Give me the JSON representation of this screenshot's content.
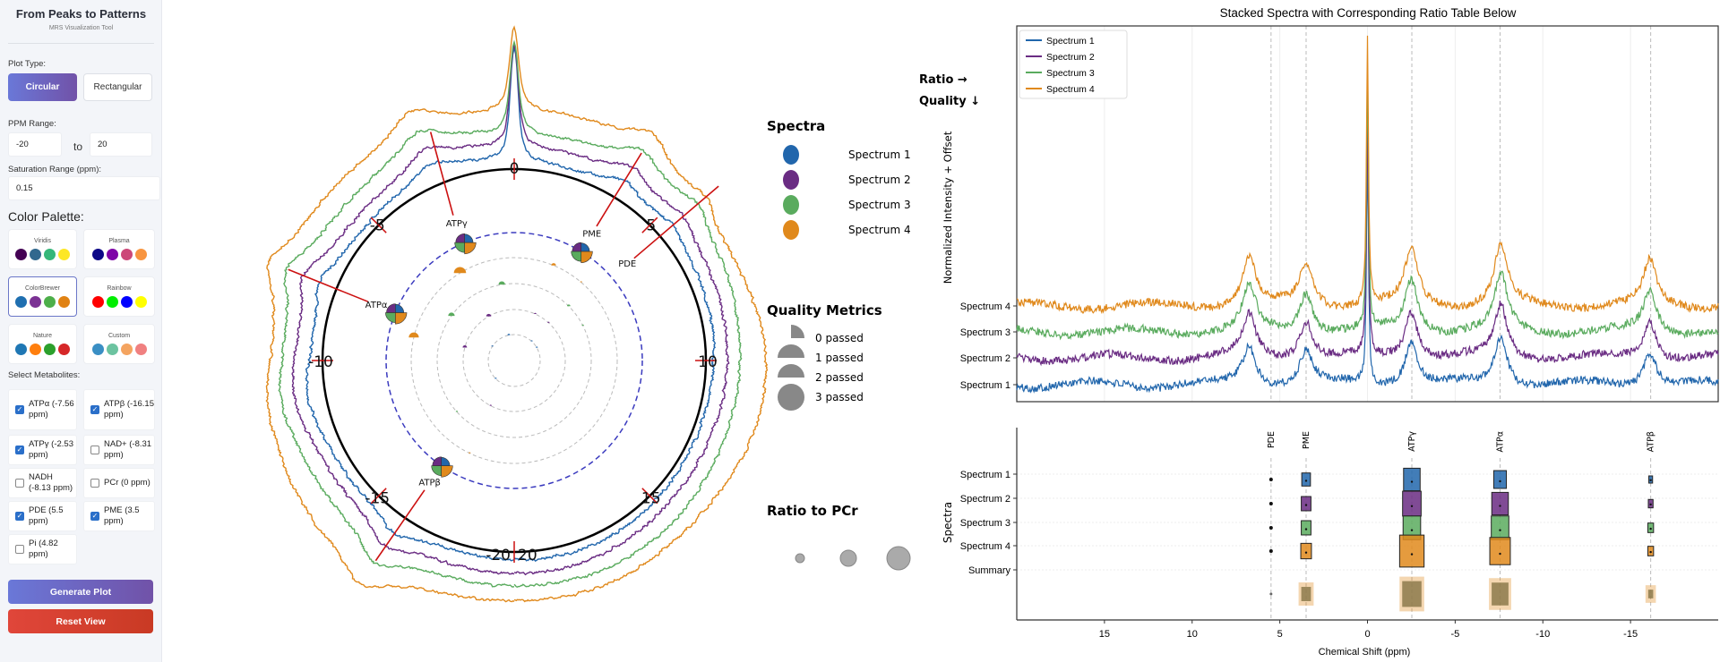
{
  "sidebar": {
    "title": "From Peaks to Patterns",
    "subtitle": "MRS Visualization Tool",
    "plot_type_label": "Plot Type:",
    "plot_types": [
      "Circular",
      "Rectangular"
    ],
    "plot_type_selected": "Circular",
    "ppm_label": "PPM Range:",
    "ppm_min": "-20",
    "ppm_to": "to",
    "ppm_max": "20",
    "saturation_label": "Saturation Range (ppm):",
    "saturation_value": "0.15",
    "palette_label": "Color Palette:",
    "palettes": [
      {
        "name": "Viridis",
        "colors": [
          "#440154",
          "#31688e",
          "#35b779",
          "#fde725"
        ]
      },
      {
        "name": "Plasma",
        "colors": [
          "#0d0887",
          "#7e03a8",
          "#cc4778",
          "#f89540"
        ]
      },
      {
        "name": "ColorBrewer",
        "colors": [
          "#1f6fb0",
          "#7b3294",
          "#4daf4a",
          "#e08214"
        ]
      },
      {
        "name": "Rainbow",
        "colors": [
          "#ff0000",
          "#00ee00",
          "#0000ff",
          "#ffff00"
        ]
      },
      {
        "name": "Nature",
        "colors": [
          "#1f77b4",
          "#ff7f0e",
          "#2ca02c",
          "#d62728"
        ]
      },
      {
        "name": "Custom",
        "colors": [
          "#3a8fc4",
          "#6cc3a0",
          "#f4a460",
          "#f08080"
        ]
      }
    ],
    "palette_selected": "ColorBrewer",
    "metabolites_label": "Select Metabolites:",
    "metabolites": [
      {
        "label": "ATPα (-7.56 ppm)",
        "checked": true
      },
      {
        "label": "ATPβ (-16.15 ppm)",
        "checked": true
      },
      {
        "label": "ATPγ (-2.53 ppm)",
        "checked": true
      },
      {
        "label": "NAD+ (-8.31 ppm)",
        "checked": false
      },
      {
        "label": "NADH (-8.13 ppm)",
        "checked": false
      },
      {
        "label": "PCr (0 ppm)",
        "checked": false
      },
      {
        "label": "PDE (5.5 ppm)",
        "checked": true
      },
      {
        "label": "PME (3.5 ppm)",
        "checked": true
      },
      {
        "label": "Pi (4.82 ppm)",
        "checked": false
      }
    ],
    "generate_label": "Generate Plot",
    "reset_label": "Reset View"
  },
  "colors": {
    "spectra": [
      "#2166ac",
      "#6a2c83",
      "#5aab5e",
      "#e0891c"
    ],
    "summary": "#8c7a4c",
    "marker_line": "#cc1111",
    "ring": "#3b3bbf"
  },
  "polar": {
    "tick_labels": [
      "0",
      "5",
      "10",
      "15",
      "20",
      "-20",
      "-15",
      "-10",
      "-5"
    ],
    "metabolites": [
      {
        "name": "ATPγ",
        "ppm": -2.53
      },
      {
        "name": "PME",
        "ppm": 3.5
      },
      {
        "name": "PDE",
        "ppm": 5.5
      },
      {
        "name": "ATPα",
        "ppm": -7.56
      },
      {
        "name": "ATPβ",
        "ppm": -16.15
      }
    ],
    "legend": {
      "spectra_title": "Spectra",
      "spectra": [
        "Spectrum 1",
        "Spectrum 2",
        "Spectrum 3",
        "Spectrum 4"
      ],
      "quality_title": "Quality Metrics",
      "quality": [
        "0 passed",
        "1 passed",
        "2 passed",
        "3 passed"
      ],
      "ratio_title": "Ratio to PCr"
    }
  },
  "chart_data": [
    {
      "type": "line",
      "title": "Stacked Spectra with Corresponding Ratio Table Below",
      "ylabel": "Normalized Intensity + Offset",
      "xlim": [
        20,
        -20
      ],
      "series": [
        {
          "name": "Spectrum 1"
        },
        {
          "name": "Spectrum 2"
        },
        {
          "name": "Spectrum 3"
        },
        {
          "name": "Spectrum 4"
        }
      ],
      "yticklabels": [
        "Spectrum 1",
        "Spectrum 2",
        "Spectrum 3",
        "Spectrum 4"
      ],
      "peaks_ppm": [
        6.75,
        3.5,
        0,
        -2.5,
        -7.6,
        -16.1
      ],
      "legend": "top-left",
      "annotation": [
        "Ratio →",
        "Quality ↓"
      ]
    },
    {
      "type": "table",
      "xlabel": "Chemical Shift (ppm)",
      "ylabel": "Spectra",
      "xticks": [
        15,
        10,
        5,
        0,
        -5,
        -10,
        -15
      ],
      "xlim": [
        20,
        -20
      ],
      "rows": [
        "Spectrum 1",
        "Spectrum 2",
        "Spectrum 3",
        "Spectrum 4",
        "Summary"
      ],
      "columns": [
        {
          "name": "PDE",
          "ppm": 5.5
        },
        {
          "name": "PME",
          "ppm": 3.5
        },
        {
          "name": "ATPγ",
          "ppm": -2.53
        },
        {
          "name": "ATPα",
          "ppm": -7.56
        },
        {
          "name": "ATPβ",
          "ppm": -16.15
        }
      ],
      "ratios": [
        [
          0.05,
          0.35,
          0.75,
          0.55,
          0.1
        ],
        [
          0.05,
          0.4,
          0.85,
          0.75,
          0.15
        ],
        [
          0.05,
          0.4,
          0.8,
          0.8,
          0.2
        ],
        [
          0.05,
          0.45,
          1.15,
          0.95,
          0.2
        ]
      ]
    }
  ]
}
